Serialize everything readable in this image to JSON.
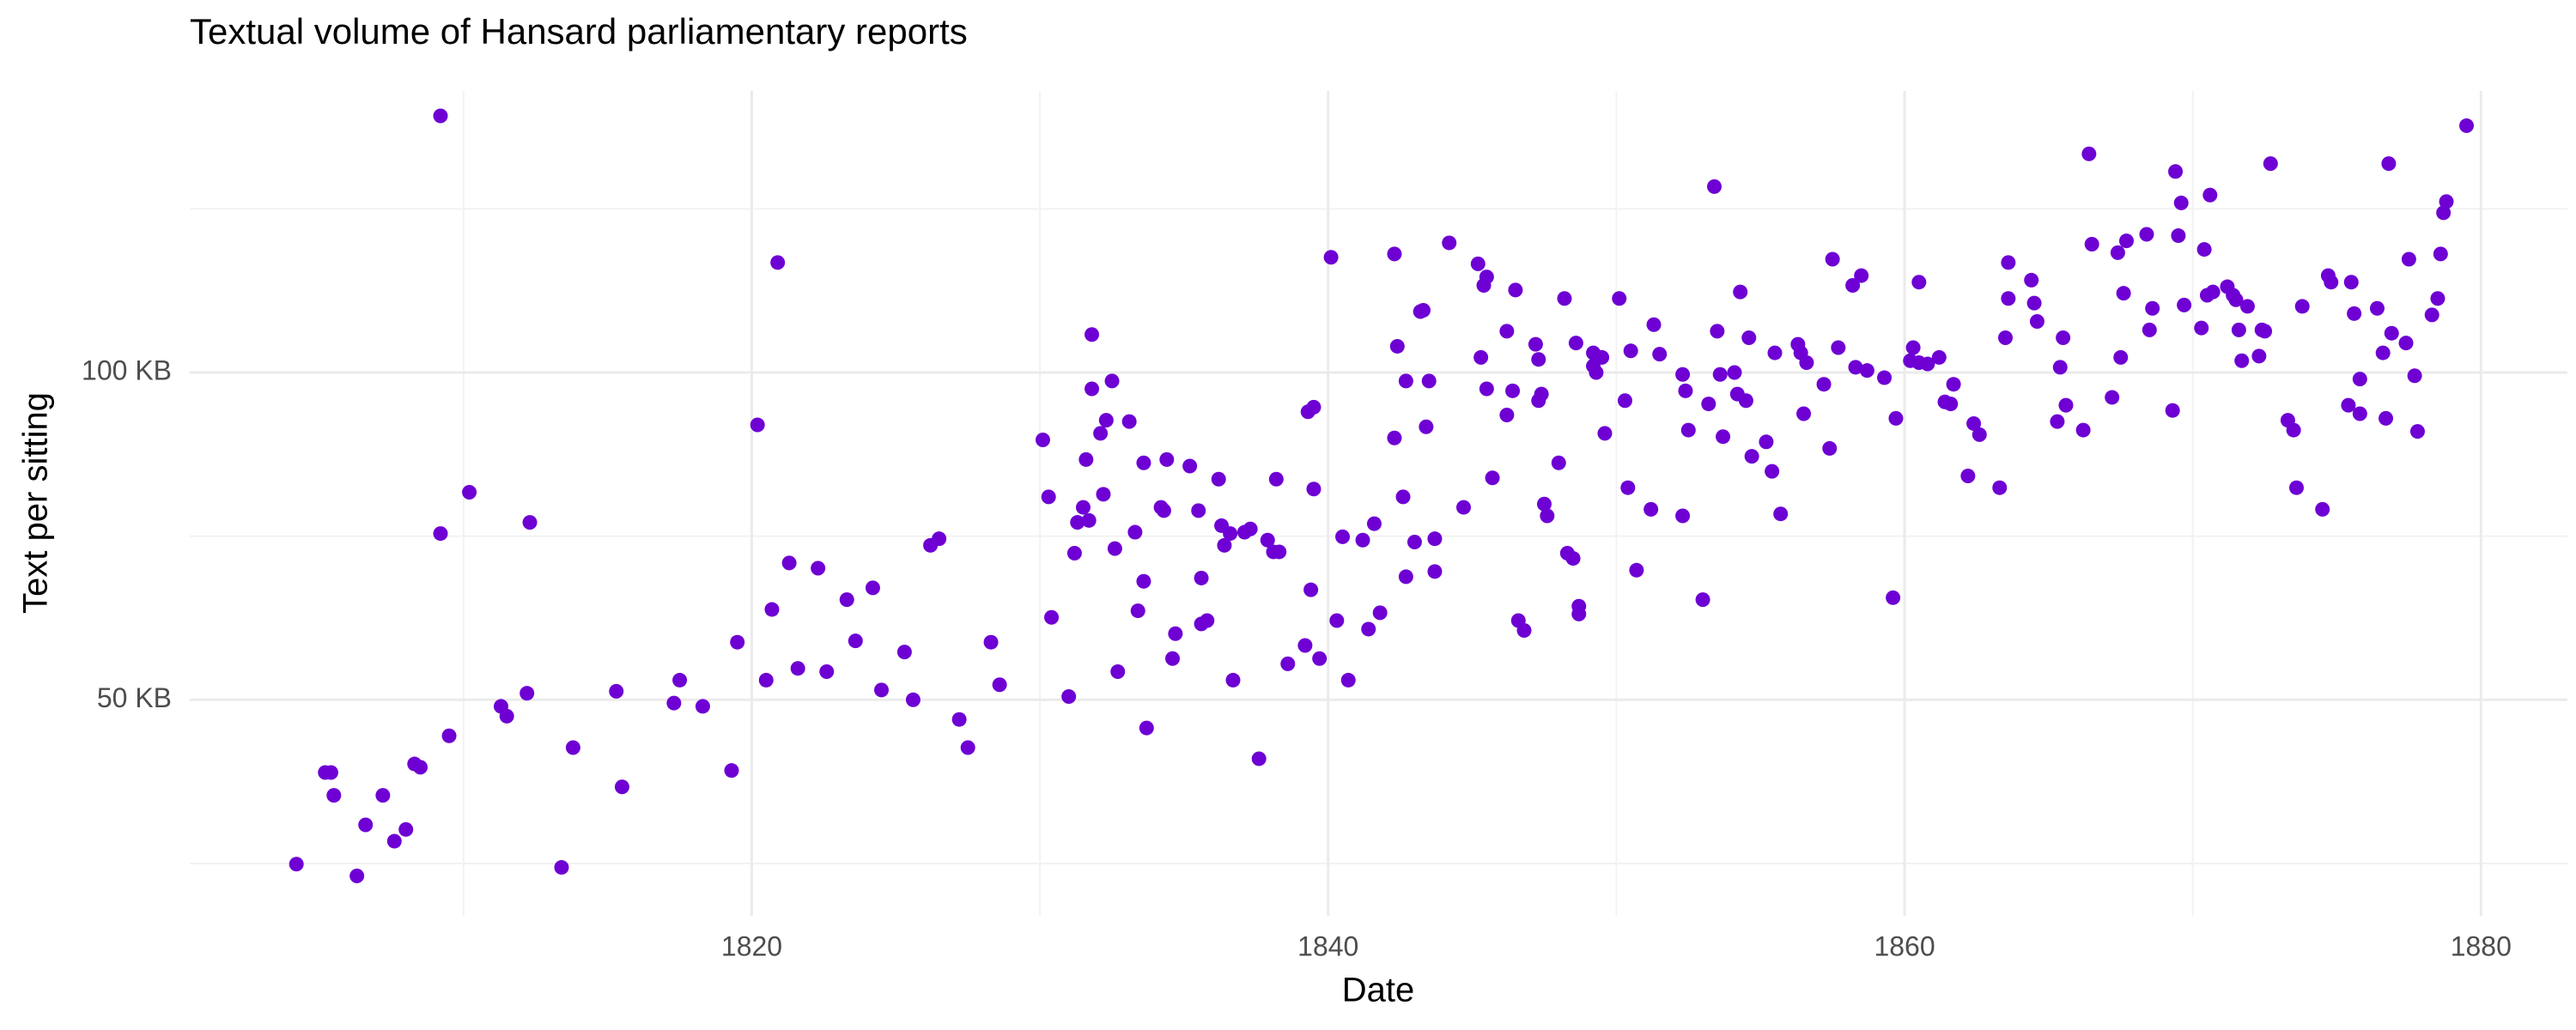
{
  "chart_data": {
    "type": "scatter",
    "title": "Textual volume of Hansard parliamentary reports",
    "x_label": "Date",
    "y_label": "Text per sitting",
    "color": "#6e00d4",
    "grid": true,
    "xlim": [
      1800.5,
      1883
    ],
    "ylim": [
      17,
      143
    ],
    "xticks": [
      1820,
      1840,
      1860,
      1880
    ],
    "yticks": [
      {
        "value": 50,
        "label": "50 KB"
      },
      {
        "value": 100,
        "label": "100 KB"
      }
    ],
    "xminor": [
      1810,
      1830,
      1850,
      1870
    ],
    "yminor": [
      25,
      75,
      125
    ],
    "x": [
      1804.2,
      1805.2,
      1805.4,
      1805.5,
      1806.3,
      1806.6,
      1807.2,
      1807.6,
      1808.0,
      1808.3,
      1808.5,
      1809.2,
      1809.2,
      1809.5,
      1810.2,
      1811.3,
      1811.5,
      1812.3,
      1812.2,
      1813.4,
      1813.8,
      1815.3,
      1815.5,
      1817.3,
      1817.5,
      1818.3,
      1819.3,
      1819.5,
      1820.2,
      1820.5,
      1820.7,
      1820.9,
      1821.3,
      1821.6,
      1822.3,
      1822.6,
      1823.3,
      1823.6,
      1824.2,
      1824.5,
      1825.3,
      1825.6,
      1826.2,
      1826.5,
      1827.2,
      1827.5,
      1828.3,
      1828.6,
      1830.1,
      1830.3,
      1830.4,
      1831.0,
      1831.2,
      1831.3,
      1831.5,
      1831.6,
      1831.7,
      1831.8,
      1831.8,
      1832.1,
      1832.2,
      1832.3,
      1832.5,
      1832.6,
      1832.7,
      1833.1,
      1833.3,
      1833.4,
      1833.6,
      1833.6,
      1833.7,
      1834.2,
      1834.3,
      1834.4,
      1834.6,
      1834.7,
      1835.2,
      1835.5,
      1835.6,
      1835.6,
      1835.8,
      1836.2,
      1836.3,
      1836.4,
      1836.6,
      1836.7,
      1837.1,
      1837.3,
      1837.6,
      1837.9,
      1838.1,
      1838.2,
      1838.3,
      1838.6,
      1839.2,
      1839.3,
      1839.5,
      1839.5,
      1839.4,
      1839.7,
      1840.1,
      1840.3,
      1840.5,
      1840.7,
      1841.2,
      1841.4,
      1841.6,
      1841.8,
      1842.3,
      1842.3,
      1842.4,
      1842.6,
      1842.7,
      1842.7,
      1843.0,
      1843.2,
      1843.3,
      1843.4,
      1843.5,
      1843.7,
      1843.7,
      1844.2,
      1844.7,
      1845.2,
      1845.3,
      1845.4,
      1845.5,
      1845.5,
      1845.7,
      1846.2,
      1846.2,
      1846.4,
      1846.5,
      1846.6,
      1846.8,
      1847.2,
      1847.3,
      1847.3,
      1847.4,
      1847.5,
      1847.6,
      1848.0,
      1848.2,
      1848.3,
      1848.5,
      1848.6,
      1848.7,
      1848.7,
      1849.2,
      1849.2,
      1849.3,
      1849.3,
      1849.5,
      1849.6,
      1850.1,
      1850.3,
      1850.4,
      1850.5,
      1850.7,
      1851.2,
      1851.3,
      1851.5,
      1852.3,
      1852.3,
      1852.4,
      1852.5,
      1853.0,
      1853.2,
      1853.4,
      1853.5,
      1853.6,
      1853.7,
      1854.1,
      1854.2,
      1854.3,
      1854.5,
      1854.6,
      1854.7,
      1855.2,
      1855.4,
      1855.5,
      1855.7,
      1856.3,
      1856.4,
      1856.5,
      1856.6,
      1857.2,
      1857.4,
      1857.5,
      1857.7,
      1858.2,
      1858.3,
      1858.5,
      1858.7,
      1859.3,
      1859.6,
      1859.7,
      1860.2,
      1860.3,
      1860.5,
      1860.5,
      1860.8,
      1861.2,
      1861.4,
      1861.6,
      1861.7,
      1862.2,
      1862.4,
      1862.6,
      1863.3,
      1863.5,
      1863.6,
      1863.6,
      1864.4,
      1864.5,
      1864.6,
      1865.3,
      1865.4,
      1865.5,
      1865.6,
      1866.2,
      1866.4,
      1866.5,
      1867.2,
      1867.4,
      1867.5,
      1867.6,
      1867.7,
      1868.4,
      1868.5,
      1868.6,
      1869.3,
      1869.4,
      1869.5,
      1869.6,
      1869.7,
      1870.3,
      1870.4,
      1870.5,
      1870.6,
      1870.7,
      1871.2,
      1871.4,
      1871.5,
      1871.6,
      1871.7,
      1871.9,
      1872.3,
      1872.4,
      1872.5,
      1872.7,
      1873.3,
      1873.5,
      1873.6,
      1873.8,
      1874.5,
      1874.7,
      1874.8,
      1875.4,
      1875.5,
      1875.6,
      1875.8,
      1875.8,
      1876.4,
      1876.6,
      1876.7,
      1876.8,
      1876.9,
      1877.4,
      1877.5,
      1877.7,
      1877.8,
      1878.3,
      1878.5,
      1878.6,
      1878.7,
      1878.8,
      1879.5
    ],
    "values": [
      24.9,
      38.9,
      38.9,
      35.4,
      23.1,
      30.9,
      35.4,
      28.4,
      30.2,
      40.2,
      39.7,
      139.2,
      75.4,
      44.5,
      81.7,
      49.0,
      47.5,
      77.1,
      51.0,
      24.4,
      42.7,
      51.3,
      36.7,
      49.5,
      53.0,
      49.0,
      39.2,
      58.8,
      92.0,
      53.0,
      63.8,
      116.8,
      70.9,
      54.8,
      70.1,
      54.3,
      65.3,
      59.0,
      67.1,
      51.5,
      57.3,
      50.0,
      73.6,
      74.6,
      47.0,
      42.7,
      58.8,
      52.3,
      89.7,
      81.0,
      62.6,
      50.5,
      72.4,
      77.1,
      79.4,
      86.7,
      77.4,
      105.8,
      97.5,
      90.7,
      81.4,
      92.7,
      98.7,
      73.1,
      54.3,
      92.5,
      75.6,
      63.6,
      68.1,
      86.2,
      45.7,
      79.4,
      78.9,
      86.7,
      56.3,
      60.1,
      85.7,
      78.9,
      61.6,
      68.6,
      62.1,
      83.7,
      76.6,
      73.6,
      75.4,
      53.0,
      75.6,
      76.1,
      41.0,
      74.4,
      72.6,
      83.7,
      72.6,
      55.5,
      58.3,
      94.0,
      94.7,
      82.2,
      66.8,
      56.3,
      117.6,
      62.1,
      74.9,
      53.0,
      74.4,
      60.8,
      76.9,
      63.3,
      90.0,
      118.1,
      104.0,
      81.0,
      98.7,
      68.8,
      74.1,
      109.3,
      109.5,
      91.7,
      98.7,
      69.6,
      74.6,
      119.8,
      79.4,
      116.6,
      102.3,
      113.3,
      114.6,
      97.5,
      83.9,
      93.5,
      106.3,
      97.2,
      112.6,
      62.1,
      60.6,
      104.3,
      102.0,
      95.7,
      96.7,
      79.9,
      78.1,
      86.2,
      111.3,
      72.4,
      71.6,
      104.5,
      63.1,
      64.3,
      103.0,
      101.0,
      102.5,
      100.0,
      102.3,
      90.7,
      111.3,
      95.7,
      82.4,
      103.3,
      69.8,
      79.1,
      107.3,
      102.8,
      78.1,
      99.7,
      97.2,
      91.2,
      65.3,
      95.2,
      128.4,
      106.3,
      99.7,
      90.2,
      100.0,
      96.7,
      112.3,
      95.7,
      105.3,
      87.2,
      89.4,
      84.9,
      103.0,
      78.4,
      104.3,
      103.0,
      93.7,
      101.5,
      98.2,
      88.4,
      117.3,
      103.8,
      113.3,
      100.8,
      114.8,
      100.3,
      99.2,
      65.6,
      93.0,
      101.8,
      103.8,
      113.8,
      101.5,
      101.3,
      102.3,
      95.5,
      95.2,
      98.2,
      84.2,
      92.2,
      90.5,
      82.4,
      105.3,
      116.8,
      111.3,
      114.1,
      110.6,
      107.8,
      92.5,
      100.8,
      105.3,
      95.0,
      91.2,
      133.4,
      119.6,
      96.2,
      118.3,
      102.3,
      112.1,
      120.1,
      121.1,
      106.5,
      109.8,
      94.2,
      130.7,
      120.9,
      125.9,
      110.3,
      106.8,
      118.8,
      111.8,
      127.1,
      112.3,
      113.1,
      111.8,
      111.1,
      106.5,
      101.8,
      110.1,
      102.5,
      106.5,
      106.3,
      131.9,
      92.7,
      91.2,
      82.4,
      110.1,
      79.1,
      114.8,
      113.8,
      95.0,
      113.8,
      109.0,
      99.0,
      93.7,
      109.8,
      103.0,
      93.0,
      131.9,
      106.0,
      104.5,
      117.3,
      99.5,
      91.0,
      108.8,
      111.3,
      118.1,
      124.4,
      126.1,
      137.7
    ]
  }
}
